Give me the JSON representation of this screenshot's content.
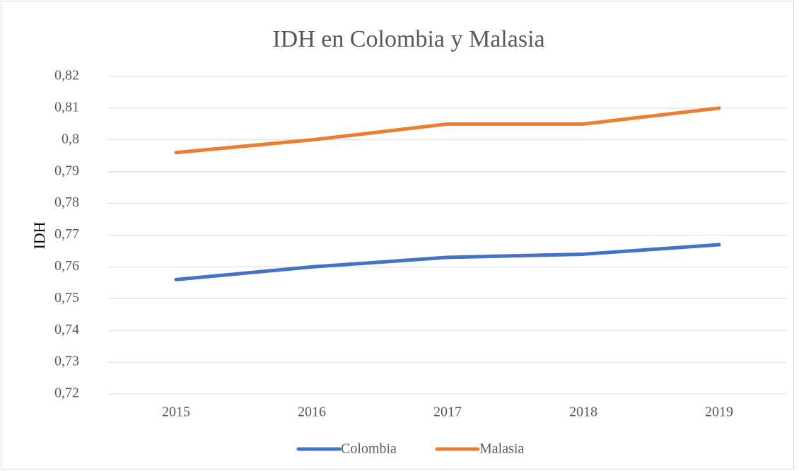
{
  "chart_data": {
    "type": "line",
    "title": "IDH en Colombia y Malasia",
    "y_label": "IDH",
    "categories": [
      "2015",
      "2016",
      "2017",
      "2018",
      "2019"
    ],
    "series": [
      {
        "name": "Colombia",
        "color": "#4472c4",
        "values": [
          0.756,
          0.76,
          0.763,
          0.764,
          0.767
        ]
      },
      {
        "name": "Malasia",
        "color": "#ed7d31",
        "values": [
          0.796,
          0.8,
          0.805,
          0.805,
          0.81
        ]
      }
    ],
    "ylim": [
      0.72,
      0.82
    ],
    "yticks": [
      {
        "value": 0.72,
        "label": "0,72"
      },
      {
        "value": 0.73,
        "label": "0,73"
      },
      {
        "value": 0.74,
        "label": "0,74"
      },
      {
        "value": 0.75,
        "label": "0,75"
      },
      {
        "value": 0.76,
        "label": "0,76"
      },
      {
        "value": 0.77,
        "label": "0,77"
      },
      {
        "value": 0.78,
        "label": "0,78"
      },
      {
        "value": 0.79,
        "label": "0,79"
      },
      {
        "value": 0.8,
        "label": "0,8"
      },
      {
        "value": 0.81,
        "label": "0,81"
      },
      {
        "value": 0.82,
        "label": "0,82"
      }
    ],
    "grid": true,
    "legend": "bottom"
  }
}
